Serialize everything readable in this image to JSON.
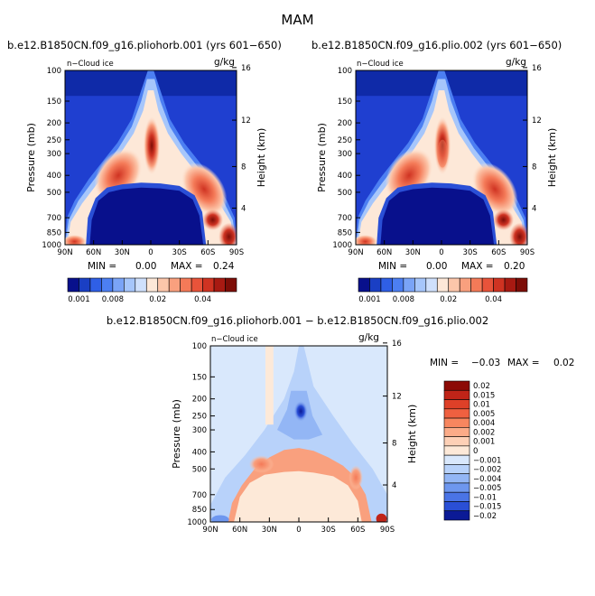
{
  "figure": {
    "title": "MAM",
    "diff_title": "b.e12.B1850CN.f09_g16.pliohorb.001 − b.e12.B1850CN.f09_g16.plio.002"
  },
  "chart_data": [
    {
      "type": "heatmap",
      "title": "b.e12.B1850CN.f09_g16.pliohorb.001 (yrs 601−650)",
      "variable": "n−Cloud ice",
      "units": "g/kg",
      "ylabel": "Pressure (mb)",
      "y2label": "Height (km)",
      "x_ticks": [
        "90N",
        "60N",
        "30N",
        "0",
        "30S",
        "60S",
        "90S"
      ],
      "x_values": [
        90,
        60,
        30,
        0,
        -30,
        -60,
        -90
      ],
      "y_ticks": [
        100,
        150,
        200,
        250,
        300,
        400,
        500,
        700,
        850,
        1000
      ],
      "y2_ticks": [
        16,
        12,
        8,
        4
      ],
      "stats": {
        "min_label": "MIN =",
        "min": "0.00",
        "max_label": "MAX =",
        "max": "0.24"
      },
      "colorbar_labels": [
        "0.001",
        "0.008",
        "0.02",
        "0.04"
      ],
      "colorbar_colors": [
        "#08108c",
        "#1a3fc4",
        "#2f5fe6",
        "#4c7ff2",
        "#7aa4f7",
        "#a6c6fb",
        "#cfe0fc",
        "#fde8d8",
        "#fcc6aa",
        "#f9a07e",
        "#f47a58",
        "#e8533a",
        "#cf3322",
        "#a81a12",
        "#7d0d07"
      ]
    },
    {
      "type": "heatmap",
      "title": "b.e12.B1850CN.f09_g16.plio.002 (yrs 601−650)",
      "variable": "n−Cloud ice",
      "units": "g/kg",
      "ylabel": "Pressure (mb)",
      "y2label": "Height (km)",
      "x_ticks": [
        "90N",
        "60N",
        "30N",
        "0",
        "30S",
        "60S",
        "90S"
      ],
      "x_values": [
        90,
        60,
        30,
        0,
        -30,
        -60,
        -90
      ],
      "y_ticks": [
        100,
        150,
        200,
        250,
        300,
        400,
        500,
        700,
        850,
        1000
      ],
      "y2_ticks": [
        16,
        12,
        8,
        4
      ],
      "stats": {
        "min_label": "MIN =",
        "min": "0.00",
        "max_label": "MAX =",
        "max": "0.20"
      },
      "colorbar_labels": [
        "0.001",
        "0.008",
        "0.02",
        "0.04"
      ],
      "colorbar_colors": [
        "#08108c",
        "#1a3fc4",
        "#2f5fe6",
        "#4c7ff2",
        "#7aa4f7",
        "#a6c6fb",
        "#cfe0fc",
        "#fde8d8",
        "#fcc6aa",
        "#f9a07e",
        "#f47a58",
        "#e8533a",
        "#cf3322",
        "#a81a12",
        "#7d0d07"
      ]
    },
    {
      "type": "heatmap",
      "title": "b.e12.B1850CN.f09_g16.pliohorb.001 − b.e12.B1850CN.f09_g16.plio.002",
      "variable": "n−Cloud ice",
      "units": "g/kg",
      "ylabel": "Pressure (mb)",
      "y2label": "Height (km)",
      "x_ticks": [
        "90N",
        "60N",
        "30N",
        "0",
        "30S",
        "60S",
        "90S"
      ],
      "x_values": [
        90,
        60,
        30,
        0,
        -30,
        -60,
        -90
      ],
      "y_ticks": [
        100,
        150,
        200,
        250,
        300,
        400,
        500,
        700,
        850,
        1000
      ],
      "y2_ticks": [
        16,
        12,
        8,
        4
      ],
      "stats": {
        "min_label": "MIN =",
        "min": "−0.03",
        "max_label": "MAX =",
        "max": "0.02"
      },
      "colorbar_labels": [
        "0.02",
        "0.015",
        "0.01",
        "0.005",
        "0.004",
        "0.002",
        "0.001",
        "0",
        "−0.001",
        "−0.002",
        "−0.004",
        "−0.005",
        "−0.01",
        "−0.015",
        "−0.02"
      ],
      "colorbar_colors": [
        "#8c0a06",
        "#c02418",
        "#de4028",
        "#ef6040",
        "#f7865f",
        "#fbab88",
        "#fdd0b6",
        "#fde9d8",
        "#d9e8fc",
        "#b8d2fa",
        "#93b6f5",
        "#6e97ef",
        "#4a74e6",
        "#2a4fd6",
        "#0b1a96"
      ]
    }
  ]
}
